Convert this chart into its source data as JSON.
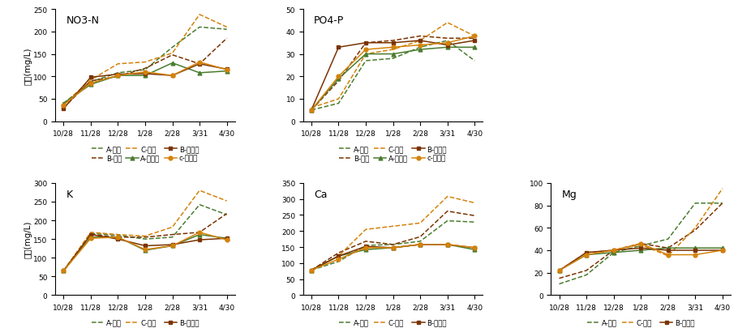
{
  "x_labels": [
    "10/28",
    "11/28",
    "12/28",
    "1/28",
    "2/28",
    "3/31",
    "4/30"
  ],
  "x_vals": [
    0,
    1,
    2,
    3,
    4,
    5,
    6
  ],
  "NO3N": {
    "title": "NO3-N",
    "ylim": [
      0,
      250
    ],
    "yticks": [
      0,
      50,
      100,
      150,
      200,
      250
    ],
    "A_bae": [
      40,
      88,
      108,
      115,
      165,
      210,
      205
    ],
    "B_bae": [
      30,
      90,
      100,
      118,
      148,
      128,
      185
    ],
    "C_bae": [
      38,
      92,
      128,
      132,
      152,
      238,
      210
    ],
    "A_gong": [
      40,
      82,
      102,
      102,
      130,
      108,
      112
    ],
    "B_gong": [
      28,
      98,
      105,
      106,
      102,
      128,
      116
    ],
    "C_gong": [
      36,
      85,
      102,
      110,
      102,
      132,
      115
    ]
  },
  "PO4P": {
    "title": "PO4-P",
    "ylim": [
      0,
      50
    ],
    "yticks": [
      0,
      10,
      20,
      30,
      40,
      50
    ],
    "A_bae": [
      5,
      8,
      27,
      28,
      33,
      36,
      27
    ],
    "B_bae": [
      5,
      18,
      35,
      36,
      38,
      37,
      37
    ],
    "C_bae": [
      6,
      10,
      30,
      32,
      36,
      44,
      38
    ],
    "A_gong": [
      5,
      19,
      30,
      30,
      32,
      33,
      33
    ],
    "B_gong": [
      5,
      33,
      35,
      35,
      36,
      34,
      36
    ],
    "C_gong": [
      5,
      20,
      32,
      33,
      34,
      35,
      38
    ]
  },
  "K": {
    "title": "K",
    "ylim": [
      0,
      300
    ],
    "yticks": [
      0,
      50,
      100,
      150,
      200,
      250,
      300
    ],
    "A_bae": [
      65,
      165,
      160,
      150,
      155,
      242,
      215
    ],
    "B_bae": [
      65,
      162,
      155,
      155,
      162,
      168,
      218
    ],
    "C_bae": [
      65,
      168,
      162,
      158,
      182,
      280,
      252
    ],
    "A_gong": [
      65,
      155,
      155,
      120,
      132,
      162,
      152
    ],
    "B_gong": [
      65,
      162,
      150,
      132,
      135,
      148,
      152
    ],
    "C_gong": [
      65,
      152,
      155,
      122,
      132,
      168,
      148
    ]
  },
  "Ca": {
    "title": "Ca",
    "ylim": [
      0,
      350
    ],
    "yticks": [
      0,
      50,
      100,
      150,
      200,
      250,
      300,
      350
    ],
    "A_bae": [
      78,
      105,
      155,
      158,
      168,
      232,
      228
    ],
    "B_bae": [
      78,
      132,
      168,
      158,
      182,
      262,
      248
    ],
    "C_bae": [
      78,
      122,
      205,
      215,
      225,
      308,
      288
    ],
    "A_gong": [
      78,
      122,
      142,
      148,
      158,
      158,
      142
    ],
    "B_gong": [
      78,
      122,
      152,
      148,
      158,
      158,
      148
    ],
    "C_gong": [
      78,
      112,
      148,
      148,
      158,
      158,
      148
    ]
  },
  "Mg": {
    "title": "Mg",
    "ylim": [
      0,
      100
    ],
    "yticks": [
      0,
      20,
      40,
      60,
      80,
      100
    ],
    "A_bae": [
      10,
      18,
      38,
      44,
      50,
      82,
      82
    ],
    "B_bae": [
      15,
      22,
      40,
      46,
      42,
      58,
      82
    ],
    "C_bae": [
      22,
      38,
      40,
      45,
      35,
      60,
      95
    ],
    "A_gong": [
      22,
      36,
      38,
      40,
      42,
      42,
      42
    ],
    "B_gong": [
      22,
      38,
      40,
      42,
      40,
      40,
      40
    ],
    "C_gong": [
      22,
      36,
      40,
      46,
      36,
      36,
      40
    ]
  },
  "color_A": "#4a7c2f",
  "color_B": "#7b3300",
  "color_C": "#d4820a",
  "ylabel": "농도(mg/L)",
  "legend_bae": [
    "A-배액",
    "B-배액",
    "C-배액"
  ],
  "legend_gong": [
    "A-공급액",
    "B-공급액",
    "c-공급액"
  ]
}
